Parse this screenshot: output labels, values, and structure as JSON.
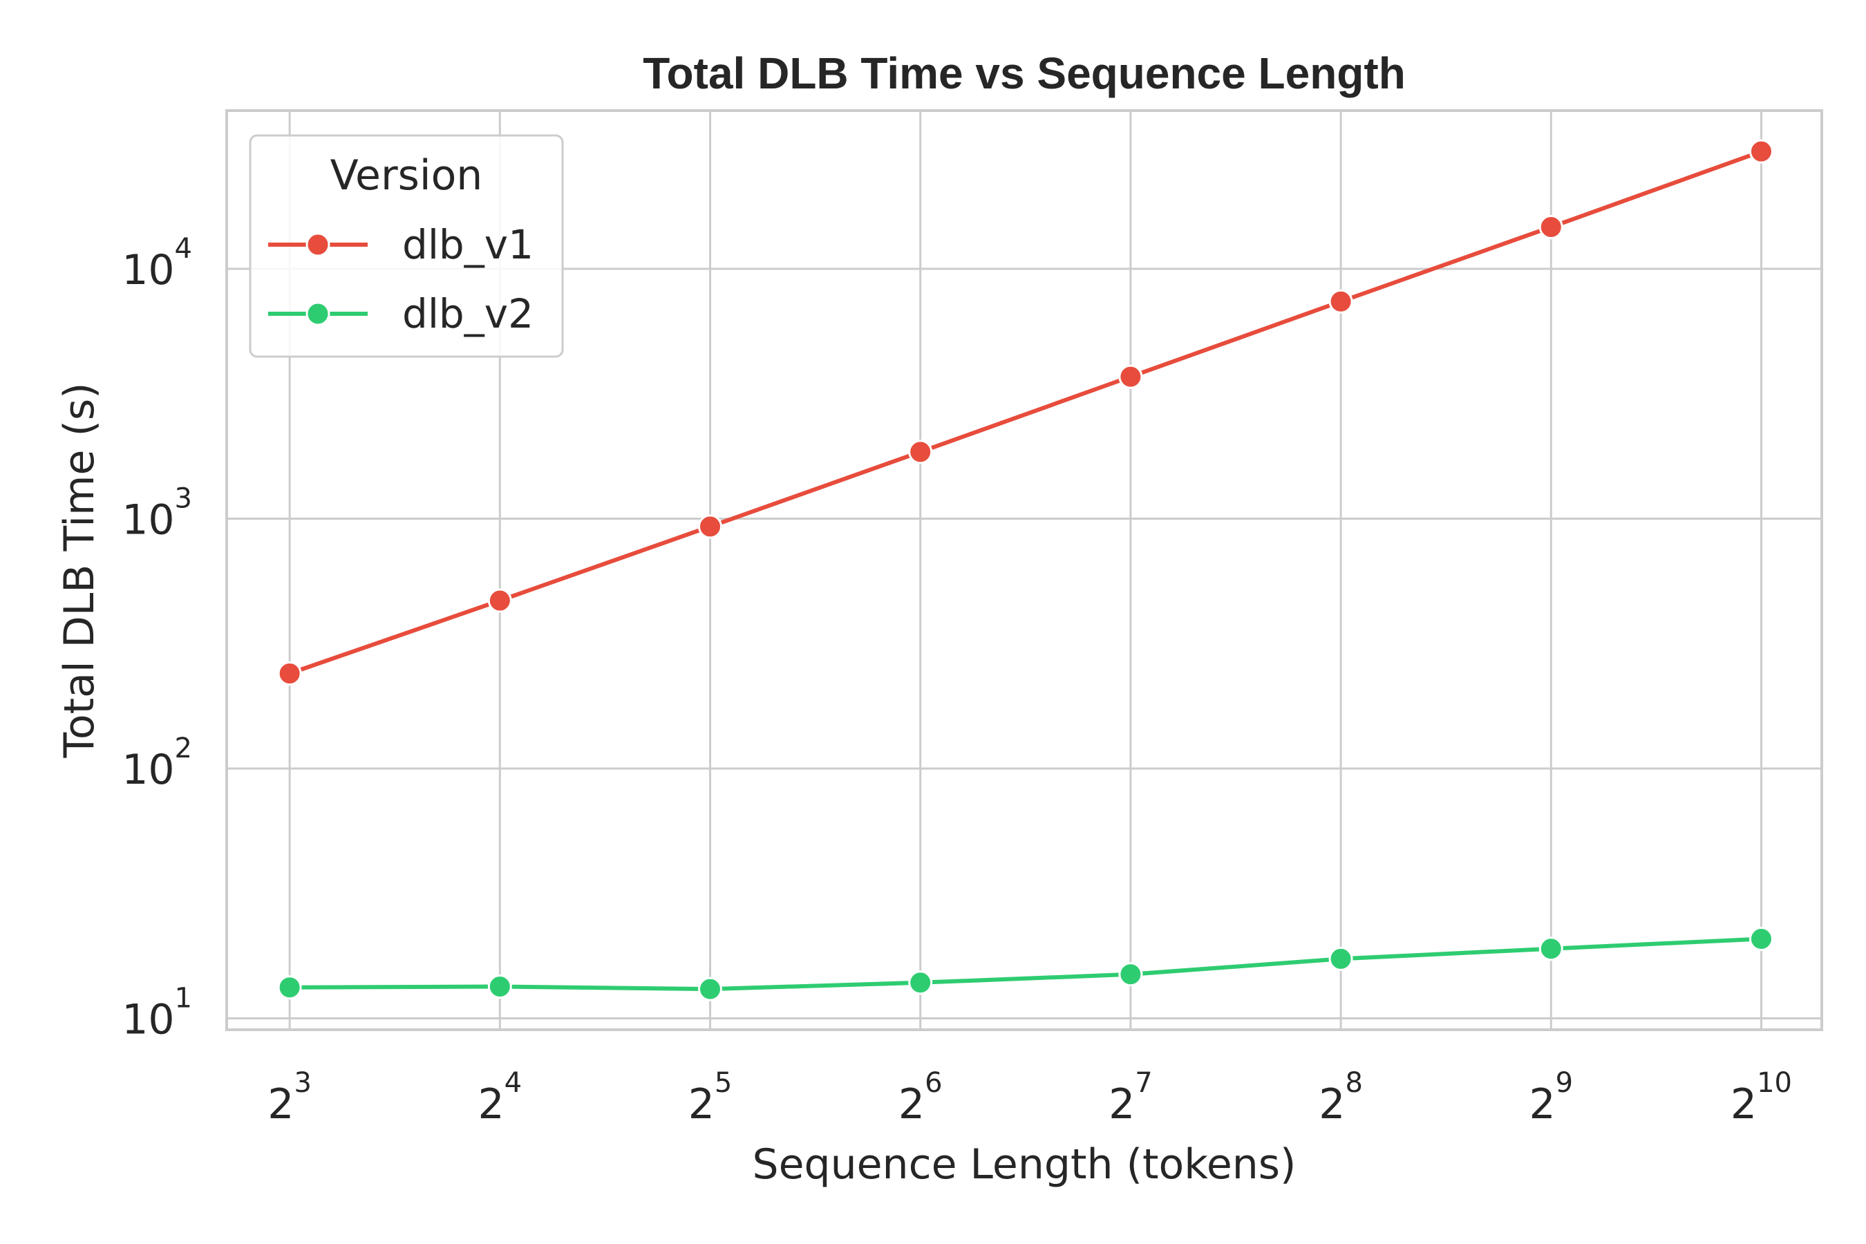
{
  "chart_data": {
    "type": "line",
    "title": "Total DLB Time vs Sequence Length",
    "xlabel": "Sequence Length (tokens)",
    "ylabel": "Total DLB Time (s)",
    "x_scale": "log2",
    "y_scale": "log10",
    "x": [
      8,
      16,
      32,
      64,
      128,
      256,
      512,
      1024
    ],
    "x_ticks": [
      {
        "base": "2",
        "exp": "3"
      },
      {
        "base": "2",
        "exp": "4"
      },
      {
        "base": "2",
        "exp": "5"
      },
      {
        "base": "2",
        "exp": "6"
      },
      {
        "base": "2",
        "exp": "7"
      },
      {
        "base": "2",
        "exp": "8"
      },
      {
        "base": "2",
        "exp": "9"
      },
      {
        "base": "2",
        "exp": "10"
      }
    ],
    "y_ticks": [
      {
        "value": 10,
        "base": "10",
        "exp": "1"
      },
      {
        "value": 100,
        "base": "10",
        "exp": "2"
      },
      {
        "value": 1000,
        "base": "10",
        "exp": "3"
      },
      {
        "value": 10000,
        "base": "10",
        "exp": "4"
      }
    ],
    "xlim": [
      6.5,
      1250
    ],
    "ylim": [
      9,
      43000
    ],
    "grid": true,
    "legend": {
      "title": "Version",
      "placement": "top-left"
    },
    "series": [
      {
        "name": "dlb_v1",
        "color": "#e74c3c",
        "values": [
          240,
          470,
          930,
          1850,
          3700,
          7400,
          14700,
          29500
        ]
      },
      {
        "name": "dlb_v2",
        "color": "#2ecc71",
        "values": [
          13.3,
          13.4,
          13.1,
          13.9,
          15.0,
          17.3,
          19.0,
          20.8
        ]
      }
    ]
  }
}
